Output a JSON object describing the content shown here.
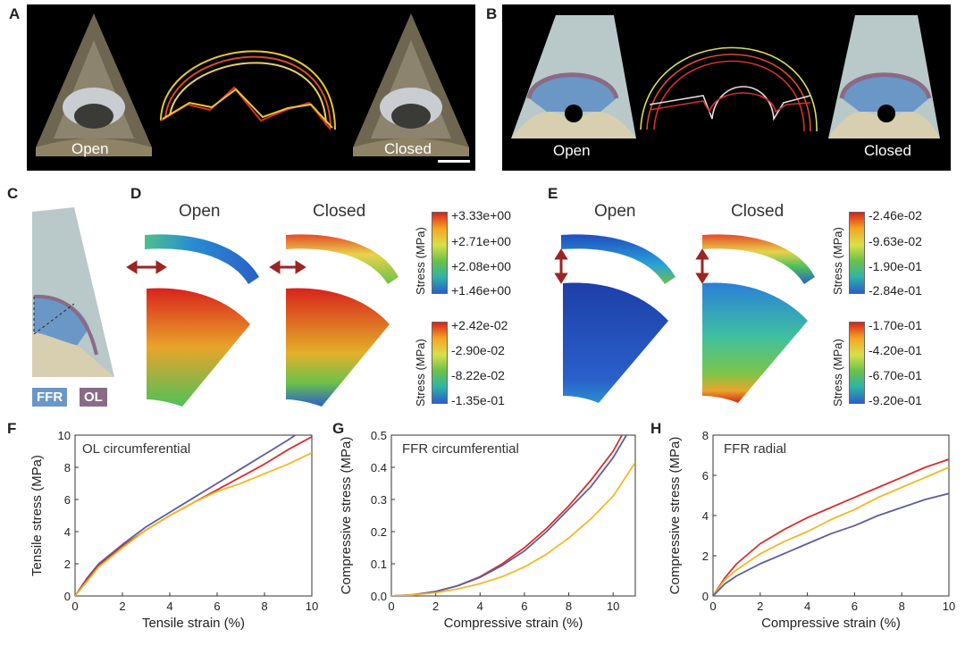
{
  "panel_labels": {
    "a": "A",
    "b": "B",
    "c": "C",
    "d": "D",
    "e": "E",
    "f": "F",
    "g": "G",
    "h": "H"
  },
  "panel_a": {
    "open": "Open",
    "closed": "Closed"
  },
  "panel_b": {
    "open": "Open",
    "closed": "Closed"
  },
  "panel_c": {
    "ffr": "FFR",
    "ol": "OL"
  },
  "panel_d": {
    "open": "Open",
    "closed": "Closed",
    "cb_top": {
      "title": "Stress (MPa)",
      "ticks": [
        "+3.33e+00",
        "+2.71e+00",
        "+2.08e+00",
        "+1.46e+00"
      ]
    },
    "cb_bottom": {
      "title": "Stress (MPa)",
      "ticks": [
        "+2.42e-02",
        "-2.90e-02",
        "-8.22e-02",
        "-1.35e-01"
      ]
    }
  },
  "panel_e": {
    "open": "Open",
    "closed": "Closed",
    "cb_top": {
      "title": "Stress (MPa)",
      "ticks": [
        "-2.46e-02",
        "-9.63e-02",
        "-1.90e-01",
        "-2.84e-01"
      ]
    },
    "cb_bottom": {
      "title": "Stress (MPa)",
      "ticks": [
        "-1.70e-01",
        "-4.20e-01",
        "-6.70e-01",
        "-9.20e-01"
      ]
    }
  },
  "colors": {
    "red": "#d62f2f",
    "yellow": "#f2b824",
    "blue": "#5d5d9e",
    "ffr": "#6b97c6",
    "ol": "#8a6b86"
  },
  "chart_data": [
    {
      "id": "F",
      "type": "line",
      "title": "OL circumferential",
      "xlabel": "Tensile strain (%)",
      "ylabel": "Tensile stress (MPa)",
      "xlim": [
        0,
        10
      ],
      "ylim": [
        0,
        10
      ],
      "xticks": [
        "0",
        "2",
        "4",
        "6",
        "8",
        "10"
      ],
      "yticks": [
        "0",
        "2",
        "4",
        "6",
        "8",
        "10"
      ],
      "series": [
        {
          "name": "blue",
          "color": "#5d5d9e",
          "x": [
            0,
            0.5,
            1,
            2,
            3,
            4,
            5,
            6,
            7,
            8,
            9,
            9.3
          ],
          "y": [
            0,
            1.1,
            2.0,
            3.2,
            4.3,
            5.2,
            6.1,
            7.0,
            7.9,
            8.8,
            9.7,
            10
          ]
        },
        {
          "name": "red",
          "color": "#d62f2f",
          "x": [
            0,
            0.5,
            1,
            2,
            3,
            4,
            5,
            6,
            7,
            8,
            9,
            10
          ],
          "y": [
            0,
            1.0,
            1.9,
            3.1,
            4.1,
            5.0,
            5.8,
            6.6,
            7.4,
            8.2,
            9.1,
            9.9
          ]
        },
        {
          "name": "yellow",
          "color": "#f2b824",
          "x": [
            0,
            0.5,
            1,
            2,
            3,
            4,
            5,
            6,
            7,
            8,
            9,
            10
          ],
          "y": [
            0,
            0.9,
            1.8,
            3.0,
            4.1,
            5.0,
            5.8,
            6.5,
            7.0,
            7.6,
            8.2,
            8.9
          ]
        }
      ]
    },
    {
      "id": "G",
      "type": "line",
      "title": "FFR circumferential",
      "xlabel": "Compressive strain (%)",
      "ylabel": "Compressive stress (MPa)",
      "xlim": [
        0,
        11
      ],
      "ylim": [
        0,
        0.5
      ],
      "xticks": [
        "0",
        "2",
        "4",
        "6",
        "8",
        "10"
      ],
      "yticks": [
        "0.0",
        "0.1",
        "0.2",
        "0.3",
        "0.4",
        "0.5"
      ],
      "series": [
        {
          "name": "red",
          "color": "#d62f2f",
          "x": [
            0,
            1,
            2,
            3,
            4,
            5,
            6,
            7,
            8,
            9,
            10,
            10.4
          ],
          "y": [
            0,
            0.004,
            0.014,
            0.032,
            0.06,
            0.1,
            0.15,
            0.21,
            0.28,
            0.36,
            0.45,
            0.5
          ]
        },
        {
          "name": "blue",
          "color": "#5d5d9e",
          "x": [
            0,
            1,
            2,
            3,
            4,
            5,
            6,
            7,
            8,
            9,
            10,
            10.6
          ],
          "y": [
            0,
            0.004,
            0.014,
            0.032,
            0.058,
            0.095,
            0.14,
            0.2,
            0.27,
            0.34,
            0.43,
            0.5
          ]
        },
        {
          "name": "yellow",
          "color": "#f2b824",
          "x": [
            0,
            1,
            2,
            3,
            4,
            5,
            6,
            7,
            8,
            9,
            10,
            11
          ],
          "y": [
            0,
            0.003,
            0.01,
            0.022,
            0.038,
            0.06,
            0.09,
            0.13,
            0.18,
            0.24,
            0.31,
            0.415
          ]
        }
      ]
    },
    {
      "id": "H",
      "type": "line",
      "title": "FFR radial",
      "xlabel": "Compressive strain (%)",
      "ylabel": "Compressive stress (MPa)",
      "xlim": [
        0,
        10
      ],
      "ylim": [
        0,
        8
      ],
      "xticks": [
        "0",
        "2",
        "4",
        "6",
        "8",
        "10"
      ],
      "yticks": [
        "0",
        "2",
        "4",
        "6",
        "8"
      ],
      "series": [
        {
          "name": "red",
          "color": "#d62f2f",
          "x": [
            0,
            0.5,
            1,
            2,
            3,
            4,
            5,
            6,
            7,
            8,
            9,
            10
          ],
          "y": [
            0,
            0.9,
            1.6,
            2.6,
            3.3,
            3.9,
            4.4,
            4.9,
            5.4,
            5.9,
            6.4,
            6.8
          ]
        },
        {
          "name": "yellow",
          "color": "#f2b824",
          "x": [
            0,
            0.5,
            1,
            2,
            3,
            4,
            5,
            6,
            7,
            8,
            9,
            10
          ],
          "y": [
            0,
            0.8,
            1.3,
            2.1,
            2.7,
            3.2,
            3.8,
            4.3,
            4.9,
            5.4,
            5.9,
            6.4
          ]
        },
        {
          "name": "blue",
          "color": "#5d5d9e",
          "x": [
            0,
            0.5,
            1,
            2,
            3,
            4,
            5,
            6,
            7,
            8,
            9,
            10
          ],
          "y": [
            0,
            0.6,
            1.0,
            1.6,
            2.1,
            2.6,
            3.1,
            3.5,
            4.0,
            4.4,
            4.8,
            5.1
          ]
        }
      ]
    }
  ]
}
